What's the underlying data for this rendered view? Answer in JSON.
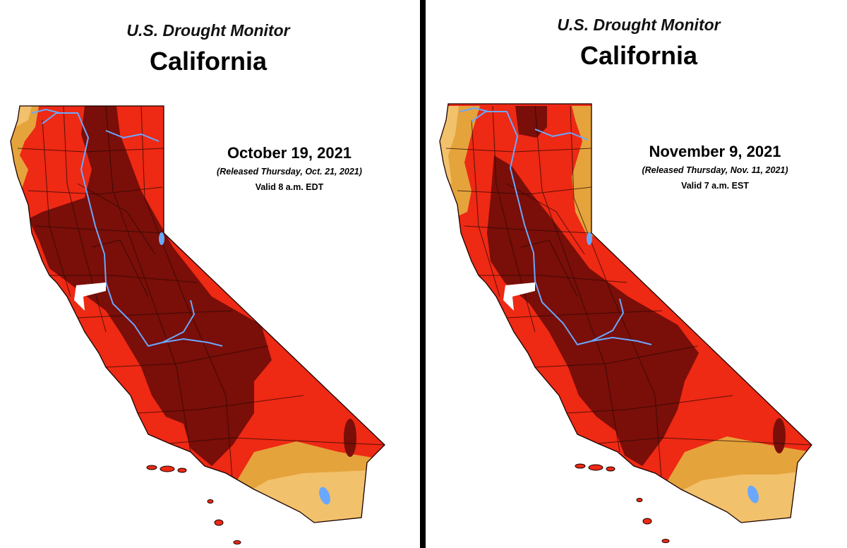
{
  "colors": {
    "D1": "#f2c16b",
    "D2": "#e5a33c",
    "D3": "#ee2914",
    "D4": "#7a0e08",
    "D0": "#e9d28a",
    "water": "#6aa8ff"
  },
  "panels": [
    {
      "title": "U.S. Drought Monitor",
      "state": "California",
      "date": "October 19, 2021",
      "released": "(Released Thursday, Oct. 21, 2021)",
      "valid": "Valid 8 a.m. EDT"
    },
    {
      "title": "U.S. Drought Monitor",
      "state": "California",
      "date": "November 9, 2021",
      "released": "(Released Thursday, Nov. 11, 2021)",
      "valid": "Valid 7 a.m. EST"
    }
  ]
}
